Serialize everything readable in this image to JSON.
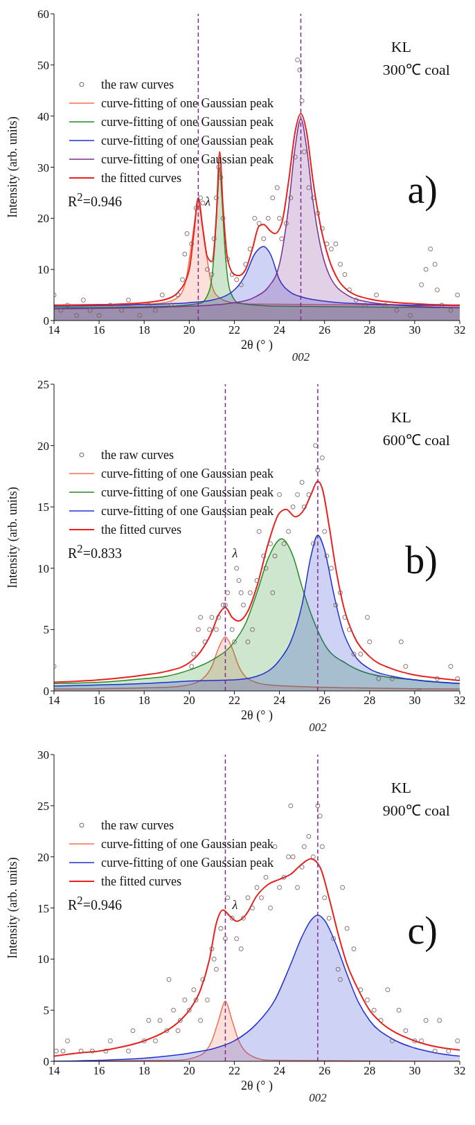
{
  "chart_data": [
    {
      "type": "line",
      "xlabel": "2θ (° )",
      "ylabel": "Intensity (arb. units)",
      "xlim": [
        14,
        32
      ],
      "xticks": [
        14,
        16,
        18,
        20,
        22,
        24,
        26,
        28,
        30,
        32
      ],
      "ylim": [
        0,
        60
      ],
      "yticks": [
        0,
        10,
        20,
        30,
        40,
        50,
        60
      ],
      "legend": "top left",
      "annotations": [
        "KL",
        "300℃ coal",
        "a)",
        "R$^{2}$=0.946",
        "002"
      ],
      "ref_lines": [
        {
          "axis": "x",
          "value": 20.4,
          "label": "λ",
          "color": "#7b2d8e",
          "line_style": "dashed"
        },
        {
          "axis": "x",
          "value": 24.95,
          "color": "#7b2d8e",
          "line_style": "dashed"
        }
      ],
      "series": [
        {
          "name": "the raw curves",
          "type": "scatter",
          "marker": "circle",
          "color": "#7a5a5a",
          "x": [
            14,
            14.3,
            14.6,
            15,
            15.3,
            15.6,
            16,
            16.5,
            17,
            17.3,
            17.8,
            18.2,
            18.5,
            18.8,
            19.2,
            19.5,
            19.7,
            19.8,
            19.9,
            20.1,
            20.3,
            20.5,
            20.6,
            20.8,
            21.0,
            21.1,
            21.2,
            21.3,
            21.4,
            21.5,
            21.7,
            21.9,
            22.1,
            22.3,
            22.5,
            22.7,
            22.9,
            23.1,
            23.3,
            23.5,
            23.7,
            23.9,
            24.0,
            24.1,
            24.3,
            24.5,
            24.7,
            24.8,
            24.9,
            25.0,
            25.1,
            25.3,
            25.5,
            25.7,
            25.9,
            26.1,
            26.3,
            26.5,
            26.7,
            26.9,
            27.1,
            27.4,
            27.8,
            28.3,
            28.7,
            29.2,
            29.8,
            30.3,
            30.5,
            30.7,
            30.9,
            31.0,
            31.2,
            31.6,
            31.9
          ],
          "values": [
            5,
            2,
            3,
            1,
            4,
            2,
            1,
            3,
            2,
            4,
            1,
            3,
            2,
            5,
            3,
            5,
            8,
            13,
            17,
            15,
            22,
            24,
            23,
            10,
            9,
            16,
            24,
            30,
            28,
            20,
            12,
            9,
            8,
            7,
            11,
            14,
            20,
            19,
            16,
            20,
            24,
            26,
            20,
            16,
            19,
            24,
            32,
            51,
            49,
            43,
            33,
            26,
            24,
            21,
            18,
            15,
            14,
            15,
            11,
            9,
            6,
            4,
            3,
            5,
            3,
            2,
            1,
            7,
            10,
            14,
            11,
            6,
            3,
            2,
            5
          ]
        },
        {
          "name": "curve-fitting of one Gaussian peak",
          "type": "area",
          "color": "#f07050",
          "x": [
            14,
            18,
            19,
            19.6,
            19.9,
            20.1,
            20.3,
            20.4,
            20.5,
            20.7,
            20.9,
            21.2,
            21.8,
            23,
            32
          ],
          "values": [
            3,
            3.2,
            3.6,
            5,
            9,
            15,
            21,
            23,
            21,
            15,
            9,
            5,
            3.6,
            3.2,
            3
          ]
        },
        {
          "name": "curve-fitting of one Gaussian peak",
          "type": "area",
          "color": "#228b22",
          "x": [
            14,
            19,
            20.5,
            20.9,
            21.1,
            21.25,
            21.35,
            21.45,
            21.6,
            21.8,
            22.2,
            24,
            32
          ],
          "values": [
            2.5,
            2.8,
            3.4,
            6,
            13,
            24,
            30,
            24,
            13,
            6,
            3.4,
            2.8,
            2.5
          ]
        },
        {
          "name": "curve-fitting of one Gaussian peak",
          "type": "area",
          "color": "#2030d0",
          "x": [
            14,
            18,
            20,
            21,
            22,
            22.5,
            22.9,
            23.3,
            23.6,
            24,
            24.5,
            25,
            26,
            28,
            32
          ],
          "values": [
            2.8,
            3.1,
            3.5,
            4,
            6,
            9,
            13,
            14.5,
            13,
            8,
            5.5,
            4.6,
            3.8,
            3.2,
            2.9
          ]
        },
        {
          "name": "curve-fitting of one Gaussian peak",
          "type": "area",
          "color": "#7b2d8e",
          "x": [
            14,
            20,
            22,
            23,
            23.5,
            24,
            24.4,
            24.7,
            24.95,
            25.2,
            25.5,
            25.8,
            26.2,
            27,
            28,
            30,
            32
          ],
          "values": [
            2.3,
            2.8,
            3.5,
            4.8,
            6.5,
            11,
            22,
            34,
            39.5,
            34,
            23,
            15,
            9,
            5,
            3.6,
            2.8,
            2.5
          ]
        },
        {
          "name": "the fitted curves",
          "type": "line",
          "color": "#e8201e",
          "x": [
            14,
            16,
            18,
            19,
            19.5,
            20,
            20.2,
            20.4,
            20.6,
            20.8,
            21.0,
            21.2,
            21.35,
            21.5,
            21.7,
            22.0,
            22.2,
            22.5,
            22.8,
            23.1,
            23.3,
            23.6,
            23.8,
            24.1,
            24.4,
            24.7,
            24.95,
            25.2,
            25.5,
            25.8,
            26.2,
            26.6,
            27,
            28,
            29,
            30,
            32
          ],
          "values": [
            3.0,
            3.1,
            3.5,
            4.2,
            5.5,
            10,
            17,
            24,
            18,
            12.5,
            11.5,
            20,
            33,
            22,
            12,
            9,
            8.8,
            10,
            14,
            18.5,
            18.8,
            17.5,
            17,
            19,
            27,
            37,
            40.5,
            37,
            27,
            19,
            12,
            8,
            6,
            4.2,
            3.6,
            3.3,
            3.0
          ]
        }
      ]
    },
    {
      "type": "line",
      "xlabel": "2θ (° )",
      "ylabel": "Intensity (arb. units)",
      "xlim": [
        14,
        32
      ],
      "xticks": [
        14,
        16,
        18,
        20,
        22,
        24,
        26,
        28,
        30,
        32
      ],
      "ylim": [
        0,
        25
      ],
      "yticks": [
        0,
        5,
        10,
        15,
        20,
        25
      ],
      "legend": "top left",
      "annotations": [
        "KL",
        "600℃ coal",
        "b)",
        "R$^{2}$=0.833",
        "002"
      ],
      "ref_lines": [
        {
          "axis": "x",
          "value": 21.6,
          "label": "λ",
          "color": "#7b2d8e",
          "line_style": "dashed"
        },
        {
          "axis": "x",
          "value": 25.7,
          "color": "#7b2d8e",
          "line_style": "dashed"
        }
      ],
      "series": [
        {
          "name": "the raw curves",
          "type": "scatter",
          "marker": "circle",
          "color": "#7a5a5a",
          "x": [
            14,
            20.1,
            20.2,
            20.4,
            20.5,
            20.7,
            20.9,
            21.0,
            21.2,
            21.3,
            21.5,
            21.6,
            21.7,
            21.9,
            22.0,
            22.1,
            22.2,
            22.3,
            22.4,
            22.6,
            22.7,
            22.8,
            23.0,
            23.1,
            23.3,
            23.4,
            23.6,
            23.7,
            23.8,
            24.0,
            24.2,
            24.4,
            24.6,
            24.8,
            25.0,
            25.1,
            25.3,
            25.5,
            25.6,
            25.7,
            25.9,
            26.0,
            26.1,
            26.3,
            26.5,
            26.7,
            26.9,
            27.1,
            27.3,
            27.6,
            27.9,
            28.0,
            28.4,
            29.0,
            29.4,
            29.6,
            30.2,
            31.0,
            31.6,
            31.9
          ],
          "values": [
            2,
            2,
            3,
            5,
            6,
            4,
            5,
            6,
            5,
            6,
            7,
            7,
            8,
            5,
            4,
            10,
            9,
            8,
            7,
            4,
            8,
            5,
            9,
            13,
            11,
            10,
            12,
            8,
            11,
            16,
            12,
            13,
            15,
            16,
            17,
            15,
            16,
            12,
            20,
            18,
            19,
            13,
            11,
            10,
            7,
            8,
            6,
            5,
            3,
            3,
            6,
            4,
            1,
            1,
            4,
            2,
            0,
            1,
            2,
            1
          ]
        },
        {
          "name": "curve-fitting of one Gaussian peak",
          "type": "area",
          "color": "#f07050",
          "x": [
            14,
            19,
            20,
            20.6,
            21,
            21.3,
            21.6,
            21.9,
            22.2,
            22.6,
            23.5,
            26,
            32
          ],
          "values": [
            0.15,
            0.3,
            0.5,
            1,
            2,
            3.5,
            4.4,
            3.5,
            2,
            1,
            0.5,
            0.3,
            0.15
          ]
        },
        {
          "name": "curve-fitting of one Gaussian peak",
          "type": "area",
          "color": "#228b22",
          "x": [
            14,
            16,
            18,
            19,
            20,
            21,
            22,
            22.5,
            23,
            23.5,
            24.1,
            24.6,
            25,
            25.5,
            26,
            27,
            28,
            30,
            32
          ],
          "values": [
            0.6,
            0.7,
            1,
            1.2,
            1.7,
            2.5,
            4,
            5.5,
            8,
            10.8,
            12.4,
            11,
            8.5,
            5.8,
            3.8,
            2.2,
            1.4,
            0.9,
            0.6
          ]
        },
        {
          "name": "curve-fitting of one Gaussian peak",
          "type": "area",
          "color": "#2030d0",
          "x": [
            14,
            18,
            20,
            22,
            23,
            24,
            24.5,
            25,
            25.4,
            25.7,
            26,
            26.4,
            26.8,
            27.3,
            28,
            29,
            30,
            32
          ],
          "values": [
            0.4,
            0.6,
            0.8,
            0.9,
            1.2,
            2.5,
            4,
            7,
            11,
            12.7,
            11.5,
            8,
            5,
            3,
            1.8,
            1.2,
            0.9,
            0.6
          ]
        },
        {
          "name": "the fitted curves",
          "type": "line",
          "color": "#e8201e",
          "x": [
            14,
            16,
            18,
            19,
            20,
            20.5,
            21,
            21.3,
            21.6,
            21.9,
            22.2,
            22.6,
            23,
            23.5,
            24,
            24.3,
            24.7,
            25.1,
            25.4,
            25.7,
            25.9,
            26.2,
            26.5,
            26.9,
            27.3,
            28,
            29,
            30,
            31,
            32
          ],
          "values": [
            0.7,
            0.9,
            1.3,
            1.6,
            2.3,
            3.2,
            4.8,
            6.2,
            6.8,
            6.0,
            5.7,
            6.5,
            8.5,
            12,
            14.5,
            14.8,
            14.2,
            14.8,
            16,
            17.1,
            16.5,
            13.5,
            10,
            6.5,
            4.5,
            2.8,
            1.8,
            1.3,
            1.05,
            0.85
          ]
        }
      ]
    },
    {
      "type": "line",
      "xlabel": "2θ (° )",
      "ylabel": "Intensity (arb. units)",
      "xlim": [
        14,
        32
      ],
      "xticks": [
        14,
        16,
        18,
        20,
        22,
        24,
        26,
        28,
        30,
        32
      ],
      "ylim": [
        0,
        30
      ],
      "yticks": [
        0,
        5,
        10,
        15,
        20,
        25,
        30
      ],
      "legend": "top left",
      "annotations": [
        "KL",
        "900℃ coal",
        "c)",
        "R$^{2}$=0.946",
        "002"
      ],
      "ref_lines": [
        {
          "axis": "x",
          "value": 21.6,
          "label": "λ",
          "color": "#7b2d8e",
          "line_style": "dashed"
        },
        {
          "axis": "x",
          "value": 25.7,
          "color": "#7b2d8e",
          "line_style": "dashed"
        }
      ],
      "series": [
        {
          "name": "the raw curves",
          "type": "scatter",
          "marker": "circle",
          "color": "#7a5a5a",
          "x": [
            14.1,
            14.4,
            14.6,
            15.2,
            15.7,
            16.3,
            16.5,
            17.3,
            17.5,
            18.0,
            18.2,
            18.5,
            18.7,
            19.0,
            19.1,
            19.3,
            19.5,
            19.6,
            19.8,
            20.0,
            20.2,
            20.3,
            20.5,
            20.6,
            20.8,
            21.0,
            21.1,
            21.2,
            21.4,
            21.6,
            21.7,
            21.9,
            22.1,
            22.3,
            22.4,
            22.6,
            22.8,
            23.0,
            23.2,
            23.4,
            23.6,
            23.8,
            24.0,
            24.2,
            24.4,
            24.5,
            24.6,
            24.8,
            25.0,
            25.1,
            25.3,
            25.5,
            25.7,
            25.8,
            25.9,
            26.0,
            26.2,
            26.4,
            26.6,
            26.7,
            26.8,
            27.0,
            27.3,
            27.6,
            27.9,
            28.2,
            28.5,
            28.8,
            29.0,
            29.3,
            29.6,
            30.0,
            30.3,
            30.5,
            30.9,
            31.1,
            31.5,
            31.9
          ],
          "values": [
            1,
            1,
            2,
            1,
            1,
            1,
            2,
            1,
            3,
            2,
            4,
            2,
            4,
            3,
            8,
            5,
            3,
            4,
            6,
            5,
            7,
            6,
            4,
            8,
            6,
            11,
            10,
            9,
            13,
            12,
            16,
            14,
            12,
            11,
            14,
            16,
            15,
            17,
            16,
            18,
            15,
            21,
            17,
            18,
            20,
            25,
            20,
            17,
            19,
            21,
            22,
            20,
            25,
            24,
            21,
            16,
            14,
            12,
            9,
            8,
            17,
            13,
            11,
            7,
            6,
            5,
            4,
            7,
            2,
            5,
            3,
            2,
            2,
            4,
            1,
            4,
            1,
            2
          ]
        },
        {
          "name": "curve-fitting of one Gaussian peak",
          "type": "area",
          "color": "#f07050",
          "x": [
            14,
            19.5,
            20.5,
            21,
            21.3,
            21.6,
            21.9,
            22.2,
            22.7,
            23.5,
            32
          ],
          "values": [
            0,
            0.1,
            0.6,
            2,
            4,
            5.9,
            4,
            2,
            0.6,
            0.1,
            0
          ]
        },
        {
          "name": "curve-fitting of one Gaussian peak",
          "type": "area",
          "color": "#2030d0",
          "x": [
            14,
            16,
            18,
            20,
            21,
            22,
            23,
            23.8,
            24.5,
            25,
            25.4,
            25.7,
            26,
            26.5,
            27,
            27.5,
            28,
            29,
            30,
            31,
            32
          ],
          "values": [
            0,
            0.1,
            0.3,
            0.8,
            1.2,
            2,
            3.7,
            6,
            9.5,
            12.2,
            13.8,
            14.3,
            13.8,
            11.5,
            8.5,
            5.8,
            4,
            2.2,
            1.3,
            0.8,
            0.5
          ]
        },
        {
          "name": "the fitted curves",
          "type": "line",
          "color": "#e8201e",
          "x": [
            14,
            15,
            16,
            17,
            18,
            19,
            19.5,
            20,
            20.5,
            20.9,
            21.2,
            21.5,
            21.8,
            22.1,
            22.5,
            23,
            23.5,
            24,
            24.5,
            25,
            25.4,
            25.8,
            26.2,
            26.6,
            27,
            27.5,
            28,
            28.5,
            29,
            30,
            31,
            32
          ],
          "values": [
            0.5,
            0.8,
            1.0,
            1.4,
            2.0,
            3.0,
            3.8,
            5,
            7,
            10,
            13.5,
            14.8,
            14.2,
            13.7,
            14.3,
            16.2,
            17.3,
            17.8,
            18.3,
            19.3,
            19.8,
            19,
            16,
            12.5,
            9.5,
            7,
            5,
            3.8,
            3,
            2,
            1.4,
            1.1
          ]
        }
      ]
    }
  ]
}
